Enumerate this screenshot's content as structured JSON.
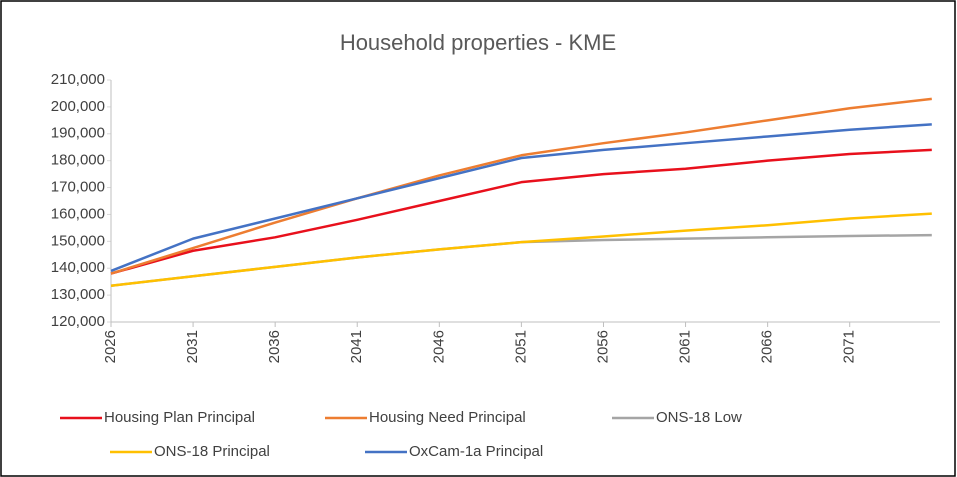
{
  "chart_data": {
    "type": "line",
    "title": "Household properties - KME",
    "x": [
      2026,
      2031,
      2036,
      2041,
      2046,
      2051,
      2056,
      2061,
      2066,
      2071,
      2076
    ],
    "series": [
      {
        "name": "Housing Plan Principal",
        "color": "#e8101c",
        "values": [
          138000,
          146500,
          151500,
          158000,
          165000,
          172000,
          175000,
          177000,
          180000,
          182500,
          184000
        ]
      },
      {
        "name": "Housing Need Principal",
        "color": "#ed7d31",
        "values": [
          138000,
          147500,
          157000,
          166000,
          174500,
          182000,
          186500,
          190500,
          195000,
          199500,
          203000
        ]
      },
      {
        "name": "ONS-18 Low",
        "color": "#a5a5a5",
        "values": [
          133500,
          137000,
          140500,
          144000,
          147000,
          149700,
          150500,
          151000,
          151500,
          152000,
          152300
        ]
      },
      {
        "name": "ONS-18 Principal",
        "color": "#ffc000",
        "values": [
          133500,
          137000,
          140500,
          144000,
          147000,
          149700,
          151800,
          154000,
          156000,
          158500,
          160300
        ]
      },
      {
        "name": "OxCam-1a Principal",
        "color": "#4472c4",
        "values": [
          139000,
          151000,
          158500,
          166000,
          173500,
          181000,
          184000,
          186500,
          189000,
          191500,
          193500
        ]
      }
    ],
    "xlim": [
      2026,
      2076.5
    ],
    "xticks": [
      2026,
      2031,
      2036,
      2041,
      2046,
      2051,
      2056,
      2061,
      2066,
      2071
    ],
    "ylim": [
      120000,
      210000
    ],
    "yticks": [
      {
        "value": 120000,
        "label": "120,000"
      },
      {
        "value": 130000,
        "label": "130,000"
      },
      {
        "value": 140000,
        "label": "140,000"
      },
      {
        "value": 150000,
        "label": "150,000"
      },
      {
        "value": 160000,
        "label": "160,000"
      },
      {
        "value": 170000,
        "label": "170,000"
      },
      {
        "value": 180000,
        "label": "180,000"
      },
      {
        "value": 190000,
        "label": "190,000"
      },
      {
        "value": 200000,
        "label": "200,000"
      },
      {
        "value": 210000,
        "label": "210,000"
      }
    ],
    "legend": "bottom"
  }
}
